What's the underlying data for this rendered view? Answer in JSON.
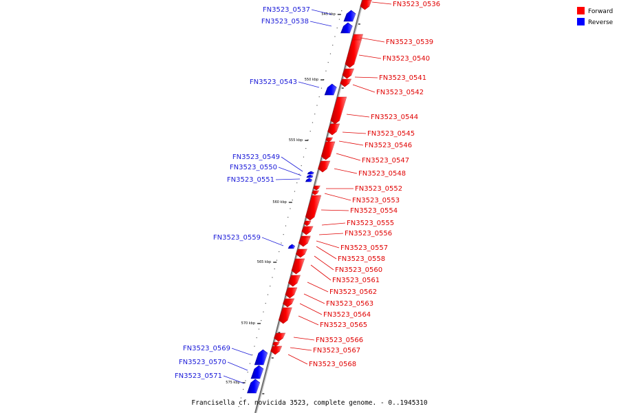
{
  "legend": {
    "items": [
      {
        "label": "Forward",
        "color": "#ff0000"
      },
      {
        "label": "Reverse",
        "color": "#0000ff"
      }
    ]
  },
  "colors": {
    "forward": "#ff0000",
    "reverse": "#0000ff",
    "backbone": "#808080"
  },
  "caption": "Francisella cf. novicida 3523, complete genome. - 0..1945310",
  "scale_labels": [
    "545 kbp",
    "550 kbp",
    "555 kbp",
    "560 kbp",
    "565 kbp",
    "570 kbp",
    "575 kbp"
  ],
  "genes": [
    {
      "name": "FN3523_0536",
      "strand": "forward"
    },
    {
      "name": "FN3523_0537",
      "strand": "reverse"
    },
    {
      "name": "FN3523_0538",
      "strand": "reverse"
    },
    {
      "name": "FN3523_0539",
      "strand": "forward"
    },
    {
      "name": "FN3523_0540",
      "strand": "forward"
    },
    {
      "name": "FN3523_0541",
      "strand": "forward"
    },
    {
      "name": "FN3523_0542",
      "strand": "forward"
    },
    {
      "name": "FN3523_0543",
      "strand": "reverse"
    },
    {
      "name": "FN3523_0544",
      "strand": "forward"
    },
    {
      "name": "FN3523_0545",
      "strand": "forward"
    },
    {
      "name": "FN3523_0546",
      "strand": "forward"
    },
    {
      "name": "FN3523_0547",
      "strand": "forward"
    },
    {
      "name": "FN3523_0548",
      "strand": "forward"
    },
    {
      "name": "FN3523_0549",
      "strand": "reverse"
    },
    {
      "name": "FN3523_0550",
      "strand": "reverse"
    },
    {
      "name": "FN3523_0551",
      "strand": "reverse"
    },
    {
      "name": "FN3523_0552",
      "strand": "forward"
    },
    {
      "name": "FN3523_0553",
      "strand": "forward"
    },
    {
      "name": "FN3523_0554",
      "strand": "forward"
    },
    {
      "name": "FN3523_0555",
      "strand": "forward"
    },
    {
      "name": "FN3523_0556",
      "strand": "forward"
    },
    {
      "name": "FN3523_0557",
      "strand": "forward"
    },
    {
      "name": "FN3523_0558",
      "strand": "forward"
    },
    {
      "name": "FN3523_0559",
      "strand": "reverse"
    },
    {
      "name": "FN3523_0560",
      "strand": "forward"
    },
    {
      "name": "FN3523_0561",
      "strand": "forward"
    },
    {
      "name": "FN3523_0562",
      "strand": "forward"
    },
    {
      "name": "FN3523_0563",
      "strand": "forward"
    },
    {
      "name": "FN3523_0564",
      "strand": "forward"
    },
    {
      "name": "FN3523_0565",
      "strand": "forward"
    },
    {
      "name": "FN3523_0566",
      "strand": "forward"
    },
    {
      "name": "FN3523_0567",
      "strand": "forward"
    },
    {
      "name": "FN3523_0568",
      "strand": "forward"
    },
    {
      "name": "FN3523_0569",
      "strand": "reverse"
    },
    {
      "name": "FN3523_0570",
      "strand": "reverse"
    },
    {
      "name": "FN3523_0571",
      "strand": "reverse"
    }
  ]
}
